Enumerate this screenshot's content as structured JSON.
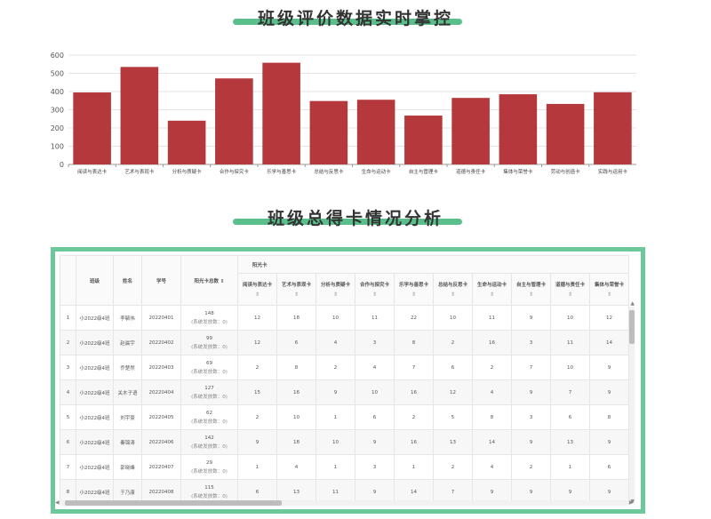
{
  "titles": {
    "evaluation": "班级评价数据实时掌控",
    "cards": "班级总得卡情况分析"
  },
  "colors": {
    "bar": "#b5393c",
    "accent": "#5bbf8c",
    "panel": "#6cc89a"
  },
  "chart_data": {
    "type": "bar",
    "categories": [
      "阅读与表达卡",
      "艺术与表现卡",
      "分析与质疑卡",
      "合作与探究卡",
      "乐学与善思卡",
      "总结与反思卡",
      "生命与运动卡",
      "自主与管理卡",
      "道德与责任卡",
      "集体与荣誉卡",
      "劳动与创造卡",
      "实践与运用卡"
    ],
    "values": [
      395,
      535,
      240,
      472,
      558,
      348,
      355,
      268,
      365,
      385,
      332,
      396
    ],
    "ylim": [
      0,
      600
    ],
    "yticks": [
      "0",
      "100",
      "200",
      "300",
      "400",
      "500",
      "600"
    ],
    "grid": true,
    "legend": "none"
  },
  "table": {
    "group_header": "阳光卡",
    "headers": {
      "class": "班级",
      "name": "姓名",
      "id": "学号",
      "total": "阳光卡总数"
    },
    "sort_glyph": "⇕",
    "total_sort_glyph": "⇕",
    "card_columns": [
      "阅读与表达卡",
      "艺术与表现卡",
      "分析与质疑卡",
      "合作与探究卡",
      "乐学与善思卡",
      "总结与反思卡",
      "生命与运动卡",
      "自主与管理卡",
      "道德与责任卡",
      "集体与荣誉卡"
    ],
    "rows": [
      {
        "n": "1",
        "class": "小2022级4班",
        "name": "李毓伟",
        "id": "20220401",
        "total": "148",
        "sub": "(系统发放数：0)",
        "cards": [
          "12",
          "18",
          "10",
          "11",
          "22",
          "10",
          "11",
          "9",
          "10",
          "12"
        ]
      },
      {
        "n": "2",
        "class": "小2022级4班",
        "name": "赵晨宇",
        "id": "20220402",
        "total": "99",
        "sub": "(系统发放数：0)",
        "cards": [
          "12",
          "6",
          "4",
          "3",
          "8",
          "2",
          "16",
          "3",
          "11",
          "14"
        ]
      },
      {
        "n": "3",
        "class": "小2022级4班",
        "name": "乔楚然",
        "id": "20220403",
        "total": "69",
        "sub": "(系统发放数：0)",
        "cards": [
          "2",
          "8",
          "2",
          "4",
          "7",
          "6",
          "2",
          "7",
          "10",
          "9"
        ]
      },
      {
        "n": "4",
        "class": "小2022级4班",
        "name": "关木子语",
        "id": "20220404",
        "total": "127",
        "sub": "(系统发放数：0)",
        "cards": [
          "15",
          "16",
          "9",
          "10",
          "16",
          "12",
          "4",
          "9",
          "7",
          "9"
        ]
      },
      {
        "n": "5",
        "class": "小2022级4班",
        "name": "刘宇豪",
        "id": "20220405",
        "total": "62",
        "sub": "(系统发放数：0)",
        "cards": [
          "2",
          "10",
          "1",
          "6",
          "2",
          "5",
          "8",
          "3",
          "6",
          "8"
        ]
      },
      {
        "n": "6",
        "class": "小2022级4班",
        "name": "秦锦涛",
        "id": "20220406",
        "total": "142",
        "sub": "(系统发放数：0)",
        "cards": [
          "9",
          "18",
          "10",
          "9",
          "16",
          "13",
          "14",
          "9",
          "13",
          "9"
        ]
      },
      {
        "n": "7",
        "class": "小2022级4班",
        "name": "郭晓峰",
        "id": "20220407",
        "total": "29",
        "sub": "(系统发放数：0)",
        "cards": [
          "1",
          "4",
          "1",
          "3",
          "1",
          "2",
          "4",
          "2",
          "1",
          "6"
        ]
      },
      {
        "n": "8",
        "class": "小2022级4班",
        "name": "于乃康",
        "id": "20220408",
        "total": "115",
        "sub": "(系统发放数：0)",
        "cards": [
          "6",
          "13",
          "11",
          "9",
          "14",
          "7",
          "9",
          "9",
          "9",
          "9"
        ]
      }
    ]
  }
}
